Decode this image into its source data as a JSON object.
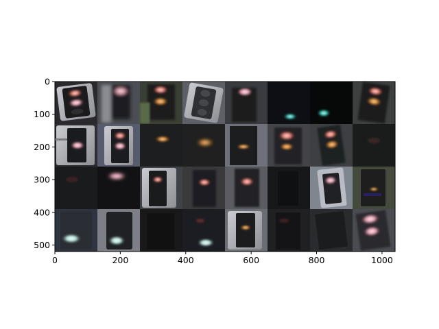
{
  "image_grid": {
    "rows": 4,
    "columns": 8,
    "description_tiles": [
      [
        "traffic-light-red-on-grey",
        "traffic-light-blurred-pink",
        "traffic-light-red-amber",
        "traffic-light-off-grey-housing",
        "traffic-light-red-dim",
        "traffic-light-green",
        "traffic-light-green",
        "traffic-light-red-amber"
      ],
      [
        "traffic-light-red-grey-housing",
        "traffic-light-red-amber-grey",
        "traffic-light-amber-dim",
        "traffic-light-amber-dim",
        "traffic-light-amber-grey",
        "traffic-light-red-amber",
        "traffic-light-red-amber",
        "traffic-light-dark"
      ],
      [
        "traffic-light-dark",
        "traffic-light-red",
        "traffic-light-red-grey-housing",
        "traffic-light-red-dim",
        "traffic-light-red-dim",
        "traffic-light-dark",
        "traffic-light-red-grey-housing",
        "traffic-light-amber-olive"
      ],
      [
        "traffic-light-green-white",
        "traffic-light-green-white",
        "traffic-light-dark",
        "traffic-light-green-white",
        "traffic-light-amber-grey",
        "traffic-light-dark",
        "traffic-light-dark",
        "traffic-light-red-pink"
      ]
    ]
  },
  "axes": {
    "x_ticks": [
      "0",
      "200",
      "400",
      "600",
      "800",
      "1000"
    ],
    "y_ticks": [
      "0",
      "100",
      "200",
      "300",
      "400",
      "500"
    ]
  },
  "colors": {
    "background": "#ffffff",
    "axis": "#000000",
    "image_frame": "#000000"
  }
}
